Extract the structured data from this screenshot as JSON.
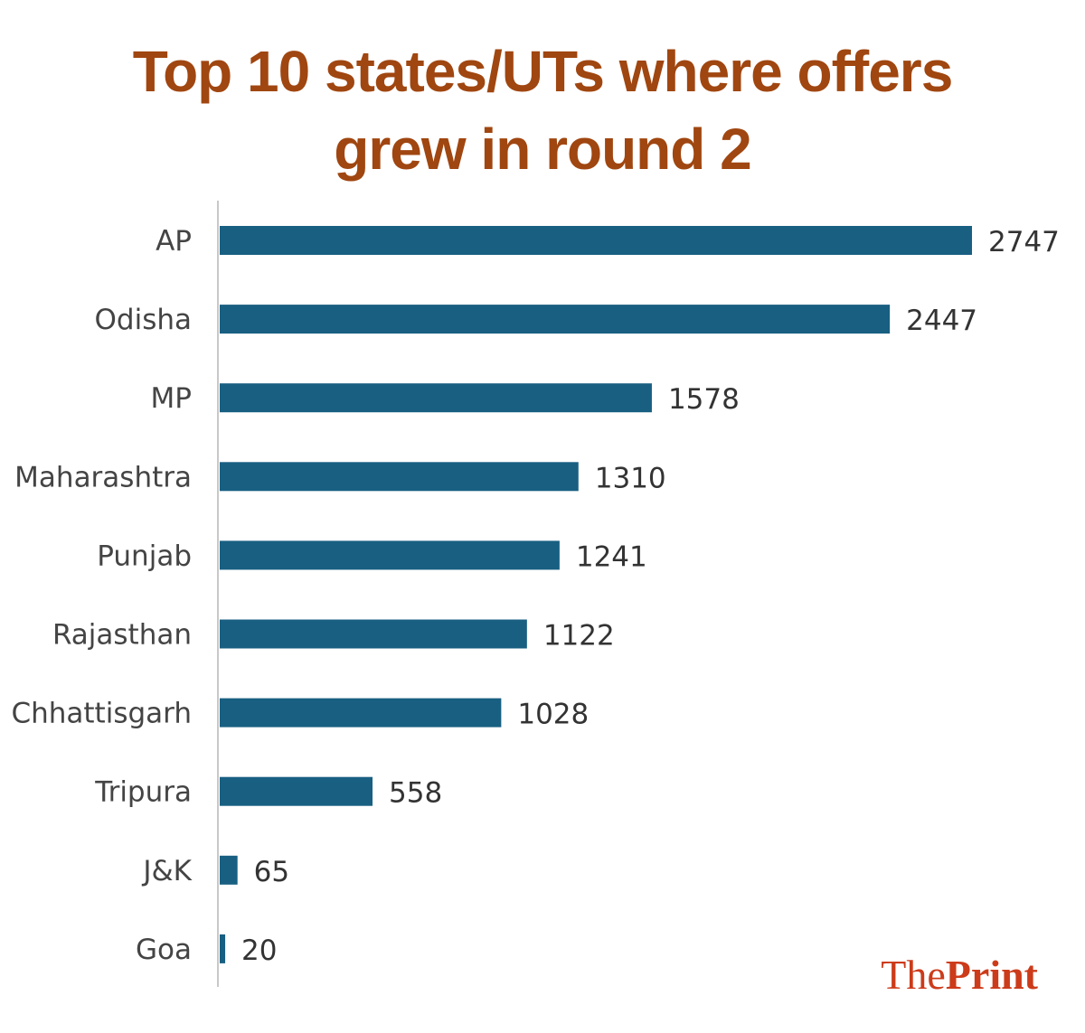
{
  "chart_data": {
    "type": "bar",
    "orientation": "horizontal",
    "title_lines": [
      "Top 10 states/UTs where offers",
      "grew in round 2"
    ],
    "categories": [
      "AP",
      "Odisha",
      "MP",
      "Maharashtra",
      "Punjab",
      "Rajasthan",
      "Chhattisgarh",
      "Tripura",
      "J&K",
      "Goa"
    ],
    "values": [
      2747,
      2447,
      1578,
      1310,
      1241,
      1122,
      1028,
      558,
      65,
      20
    ],
    "xlim": [
      0,
      2747
    ],
    "grid": false,
    "bar_color": "#185f82",
    "title_color": "#a04610"
  },
  "logo": {
    "part1": "The",
    "part2": "Print",
    "color": "#cc3b1a"
  }
}
